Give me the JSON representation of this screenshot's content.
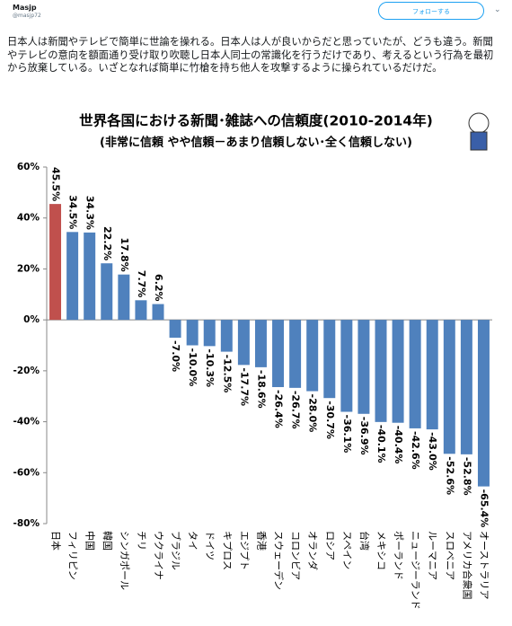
{
  "tweet": {
    "name": "Masjp",
    "handle": "@masjp72",
    "follow": "フォローする",
    "text": "日本人は新聞やテレビで簡単に世論を操れる。日本人は人が良いからだと思っていたが、どうも違う。新聞やテレビの意向を額面通り受け取り吹聴し日本人同士の常識化を行うだけであり、考えるという行為を最初から放棄している。いざとなれば簡単に竹槍を持ち他人を攻撃するように操られているだけだ。"
  },
  "chart_data": {
    "type": "bar",
    "title": "世界各国における新聞･雑誌への信頼度(2010-2014年)",
    "subtitle": "(非常に信頼 やや信頼－あまり信頼しない･全く信頼しない)",
    "categories": [
      "日本",
      "フィリピン",
      "中国",
      "韓国",
      "シンガポール",
      "チリ",
      "ウクライナ",
      "ブラジル",
      "タイ",
      "ドイツ",
      "キプロス",
      "エジプト",
      "香港",
      "スウェーデン",
      "コロンビア",
      "オランダ",
      "ロシア",
      "スペイン",
      "台湾",
      "メキシコ",
      "ポーランド",
      "ニュージーランド",
      "ルーマニア",
      "スロベニア",
      "アメリカ合衆国",
      "オーストラリア"
    ],
    "values": [
      45.5,
      34.5,
      34.3,
      22.2,
      17.8,
      7.7,
      6.2,
      -7.0,
      -10.0,
      -10.3,
      -12.5,
      -17.7,
      -18.6,
      -26.4,
      -26.7,
      -28.0,
      -30.7,
      -36.1,
      -36.9,
      -40.1,
      -40.4,
      -42.6,
      -43.0,
      -52.6,
      -52.8,
      -65.4
    ],
    "value_labels": [
      "45.5%",
      "34.5%",
      "34.3%",
      "22.2%",
      "17.8%",
      "7.7%",
      "6.2%",
      "-7.0%",
      "-10.0%",
      "-10.3%",
      "-12.5%",
      "-17.7%",
      "-18.6%",
      "-26.4%",
      "-26.7%",
      "-28.0%",
      "-30.7%",
      "-36.1%",
      "-36.9%",
      "-40.1%",
      "-40.4%",
      "-42.6%",
      "-43.0%",
      "-52.6%",
      "-52.8%",
      "-65.4%"
    ],
    "colors": [
      "#c0504d",
      "#4f81bd",
      "#4f81bd",
      "#4f81bd",
      "#4f81bd",
      "#4f81bd",
      "#4f81bd",
      "#4f81bd",
      "#4f81bd",
      "#4f81bd",
      "#4f81bd",
      "#4f81bd",
      "#4f81bd",
      "#4f81bd",
      "#4f81bd",
      "#4f81bd",
      "#4f81bd",
      "#4f81bd",
      "#4f81bd",
      "#4f81bd",
      "#4f81bd",
      "#4f81bd",
      "#4f81bd",
      "#4f81bd",
      "#4f81bd",
      "#4f81bd"
    ],
    "ylim": [
      -80,
      60
    ],
    "yticks": [
      {
        "value": -80,
        "label": "-80%"
      },
      {
        "value": -60,
        "label": "-60%"
      },
      {
        "value": -40,
        "label": "-40%"
      },
      {
        "value": -20,
        "label": "-20%"
      },
      {
        "value": 0,
        "label": "0%"
      },
      {
        "value": 20,
        "label": "20%"
      },
      {
        "value": 40,
        "label": "40%"
      },
      {
        "value": 60,
        "label": "60%"
      }
    ]
  }
}
